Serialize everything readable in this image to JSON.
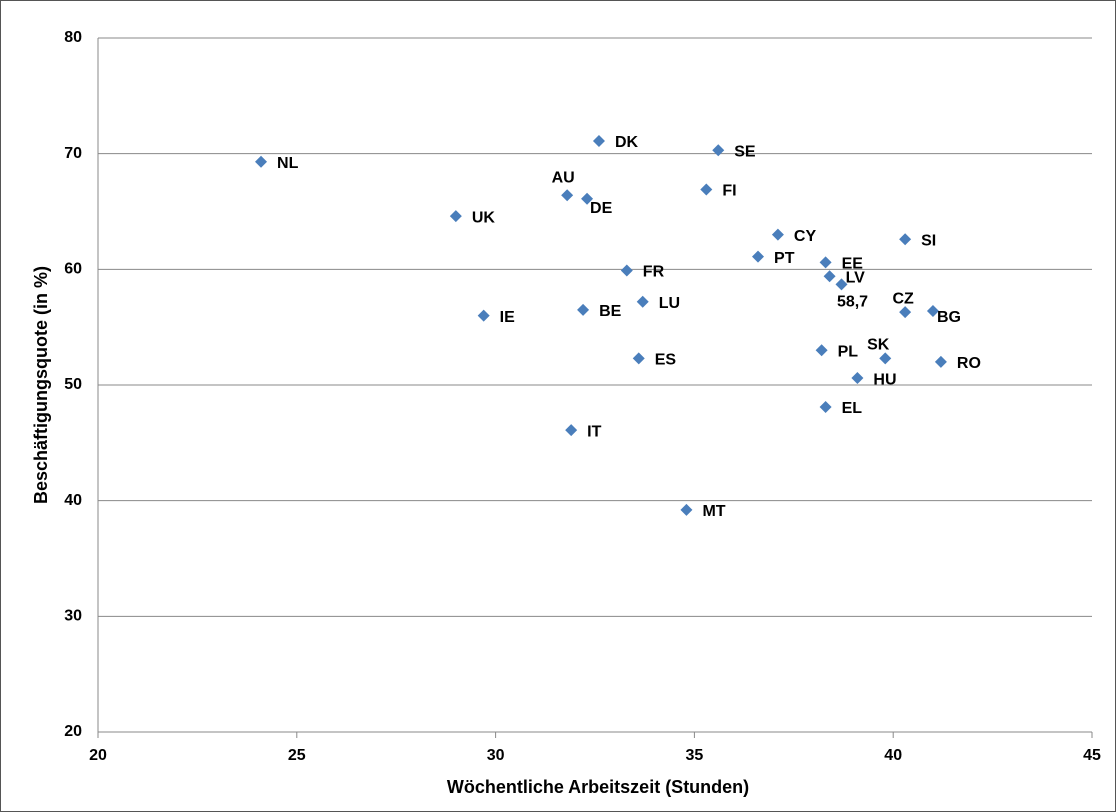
{
  "chart_data": {
    "type": "scatter",
    "xlabel": "Wöchentliche Arbeitszeit (Stunden)",
    "ylabel": "Beschäftigungsquote (in %)",
    "color": "#4a7ebb",
    "x": [
      24.1,
      29.0,
      29.7,
      31.8,
      32.3,
      32.6,
      32.2,
      33.3,
      33.7,
      33.6,
      31.9,
      34.8,
      35.6,
      35.3,
      37.1,
      36.6,
      38.3,
      38.4,
      38.7,
      38.2,
      38.3,
      40.3,
      41.0,
      40.3,
      39.8,
      39.1,
      41.2
    ],
    "values": [
      69.3,
      64.6,
      56.0,
      66.4,
      66.1,
      71.1,
      56.5,
      59.9,
      57.2,
      52.3,
      46.1,
      39.2,
      70.3,
      66.9,
      63.0,
      61.1,
      60.6,
      59.4,
      58.7,
      53.0,
      48.1,
      56.3,
      56.4,
      62.6,
      52.3,
      50.6,
      52.0
    ],
    "labels": [
      "NL",
      "UK",
      "IE",
      "AU",
      "DE",
      "DK",
      "BE",
      "FR",
      "LU",
      "ES",
      "IT",
      "MT",
      "SE",
      "FI",
      "CY",
      "PT",
      "EE",
      "LV",
      "58,7",
      "PL",
      "EL",
      "CZ",
      "BG",
      "SI",
      "SK",
      "HU",
      "RO"
    ],
    "xlim": [
      20,
      45
    ],
    "xticks": [
      20,
      25,
      30,
      35,
      40,
      45
    ],
    "ylim": [
      20,
      80
    ],
    "yticks": [
      20,
      30,
      40,
      50,
      60,
      70,
      80
    ],
    "grid": true
  }
}
